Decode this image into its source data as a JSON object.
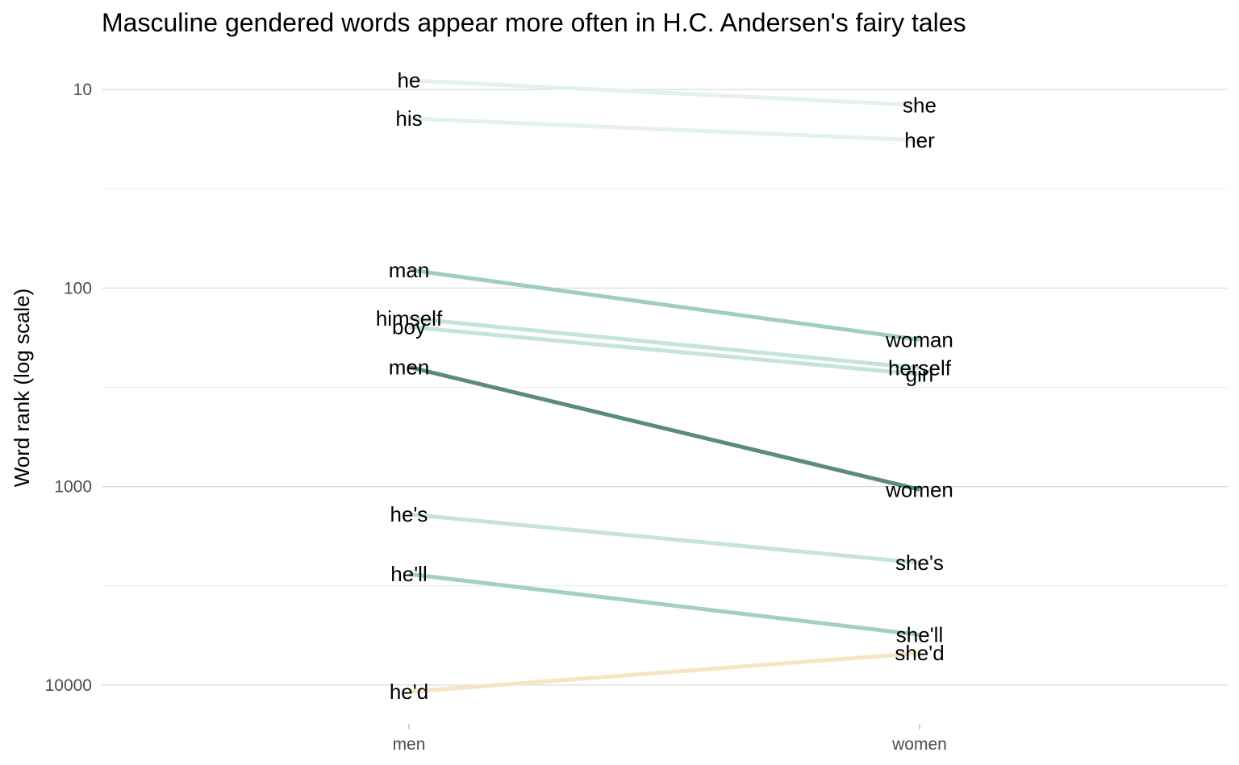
{
  "chart_data": {
    "type": "line",
    "title": "Masculine gendered words appear more often in H.C. Andersen's fairy tales",
    "ylabel": "Word rank (log scale)",
    "xlabel": "",
    "y_scale": "log",
    "y_reversed": true,
    "ylim": [
      10000,
      6.5
    ],
    "y_ticks": [
      10,
      100,
      1000,
      10000
    ],
    "y_tick_labels": [
      "10",
      "100",
      "1000",
      "10000"
    ],
    "categories": [
      "men",
      "women"
    ],
    "grid": true,
    "legend": "none",
    "pairs": [
      {
        "men_word": "he",
        "men_rank": 9,
        "women_word": "she",
        "women_rank": 12,
        "color": "#e4f1ee"
      },
      {
        "men_word": "his",
        "men_rank": 14,
        "women_word": "her",
        "women_rank": 18,
        "color": "#e4f1ee"
      },
      {
        "men_word": "man",
        "men_rank": 81,
        "women_word": "woman",
        "women_rank": 182,
        "color": "#9fcdc6"
      },
      {
        "men_word": "himself",
        "men_rank": 142,
        "women_word": "herself",
        "women_rank": 253,
        "color": "#c6e4de"
      },
      {
        "men_word": "boy",
        "men_rank": 157,
        "women_word": "girl",
        "women_rank": 272,
        "color": "#c6e4de"
      },
      {
        "men_word": "men",
        "men_rank": 250,
        "women_word": "women",
        "women_rank": 1035,
        "color": "#5a8a82"
      },
      {
        "men_word": "he's",
        "men_rank": 1380,
        "women_word": "she's",
        "women_rank": 2420,
        "color": "#c6e4de"
      },
      {
        "men_word": "he'll",
        "men_rank": 2760,
        "women_word": "she'll",
        "women_rank": 5580,
        "color": "#a3cfc8"
      },
      {
        "men_word": "he'd",
        "men_rank": 10800,
        "women_word": "she'd",
        "women_rank": 6900,
        "color": "#f4e6c3"
      }
    ]
  }
}
